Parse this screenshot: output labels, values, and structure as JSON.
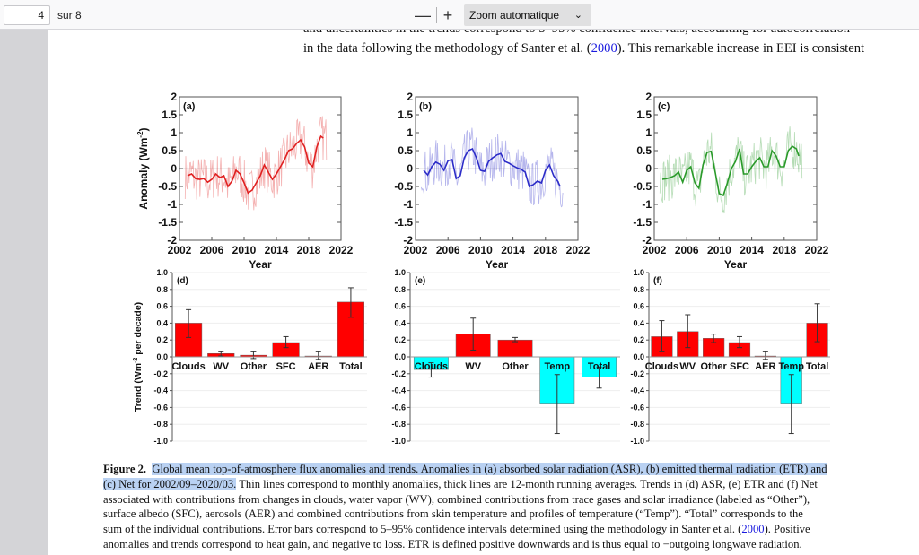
{
  "viewer": {
    "page_number": "4",
    "page_total": "sur 8",
    "zoom_out_label": "—",
    "zoom_in_label": "+",
    "zoom_value": "Zoom automatique",
    "chevron_icon": "chevron-down-icon"
  },
  "body_text": {
    "line1": "and uncertainties in the trends correspond to 5–95% confidence intervals, accounting for autocorrelation",
    "line2_pre": "in the data following the methodology of Santer et al. (",
    "line2_link": "2000",
    "line2_post": "). This remarkable increase in EEI is consistent"
  },
  "caption": {
    "label": "Figure 2.",
    "l1_hl": "Global mean top-of-atmosphere flux anomalies and trends. Anomalies in (a) absorbed solar radiation (ASR), (b) emitted thermal radiation (ETR) and",
    "l2_hl": "(c) Net for 2002/09–2020/03.",
    "l2_rest": " Thin lines correspond to monthly anomalies, thick lines are 12-month running averages. Trends in (d) ASR, (e) ETR and (f) Net",
    "l3": "associated with contributions from changes in clouds, water vapor (WV), combined contributions from trace gases and solar irradiance (labeled as “Other”),",
    "l4": "surface albedo (SFC), aerosols (AER) and combined contributions from skin temperature and profiles of temperature (“Temp”). “Total” corresponds to the",
    "l5_pre": "sum of the individual contributions. Error bars correspond to 5–95% confidence intervals determined using the methodology in Santer et al. (",
    "l5_link": "2000",
    "l5_post": "). Positive",
    "l6": "anomalies and trends correspond to heat gain, and negative to loss. ETR is defined positive downwards and is thus equal to −outgoing longwave radiation."
  },
  "chart_data": [
    {
      "type": "line",
      "panel": "(a)",
      "ylabel": "Anomaly (Wm-2)",
      "xlabel": "Year",
      "xlim": [
        2002,
        2022
      ],
      "ylim": [
        -2,
        2
      ],
      "xticks": [
        "2002",
        "2006",
        "2010",
        "2014",
        "2018",
        "2022"
      ],
      "yticks": [
        "2",
        "1.5",
        "1",
        "0.5",
        "0",
        "-0.5",
        "-1",
        "-1.5",
        "-2"
      ],
      "color": "#e02020",
      "series": [
        {
          "name": "12-month running average",
          "x": [
            2003.0,
            2003.5,
            2004.0,
            2004.5,
            2005.0,
            2005.5,
            2006.0,
            2006.5,
            2007.0,
            2007.5,
            2008.0,
            2008.5,
            2009.0,
            2009.5,
            2010.0,
            2010.5,
            2011.0,
            2011.5,
            2012.0,
            2012.5,
            2013.0,
            2013.5,
            2014.0,
            2014.5,
            2015.0,
            2015.5,
            2016.0,
            2016.5,
            2017.0,
            2017.5,
            2018.0,
            2018.5,
            2019.0,
            2019.5,
            2019.8
          ],
          "y": [
            -0.2,
            -0.15,
            -0.28,
            -0.3,
            -0.28,
            -0.38,
            -0.3,
            -0.15,
            -0.25,
            -0.2,
            -0.5,
            -0.35,
            -0.05,
            -0.15,
            -0.4,
            -0.68,
            -0.6,
            -0.4,
            -0.2,
            0.1,
            -0.1,
            -0.3,
            -0.15,
            0.05,
            0.25,
            0.5,
            0.55,
            0.7,
            0.8,
            0.6,
            0.15,
            0.05,
            0.6,
            0.9,
            0.85
          ]
        }
      ]
    },
    {
      "type": "line",
      "panel": "(b)",
      "xlabel": "Year",
      "xlim": [
        2002,
        2022
      ],
      "ylim": [
        -2,
        2
      ],
      "xticks": [
        "2002",
        "2006",
        "2010",
        "2014",
        "2018",
        "2022"
      ],
      "yticks": [
        "2",
        "1.5",
        "1",
        "0.5",
        "0",
        "-0.5",
        "-1",
        "-1.5",
        "-2"
      ],
      "color": "#2c2cc8",
      "series": [
        {
          "name": "12-month running average",
          "x": [
            2003.0,
            2003.5,
            2004.0,
            2004.5,
            2005.0,
            2005.5,
            2006.0,
            2006.5,
            2007.0,
            2007.5,
            2008.0,
            2008.5,
            2009.0,
            2009.5,
            2010.0,
            2010.5,
            2011.0,
            2011.5,
            2012.0,
            2012.5,
            2013.0,
            2013.5,
            2014.0,
            2014.5,
            2015.0,
            2015.5,
            2016.0,
            2016.5,
            2017.0,
            2017.5,
            2018.0,
            2018.5,
            2019.0,
            2019.5,
            2019.8
          ],
          "y": [
            -0.05,
            -0.18,
            0.05,
            0.18,
            0.12,
            -0.05,
            0.22,
            0.25,
            -0.28,
            -0.2,
            0.3,
            0.5,
            0.55,
            0.3,
            -0.05,
            -0.08,
            0.2,
            0.3,
            0.38,
            0.42,
            0.2,
            0.15,
            0.08,
            0.02,
            -0.02,
            -0.1,
            -0.5,
            -0.45,
            -0.35,
            -0.4,
            -0.05,
            0.1,
            -0.2,
            -0.35,
            -0.5
          ]
        }
      ]
    },
    {
      "type": "line",
      "panel": "(c)",
      "xlabel": "Year",
      "xlim": [
        2002,
        2022
      ],
      "ylim": [
        -2,
        2
      ],
      "xticks": [
        "2002",
        "2006",
        "2010",
        "2014",
        "2018",
        "2022"
      ],
      "yticks": [
        "2",
        "1.5",
        "1",
        "0.5",
        "0",
        "-0.5",
        "-1",
        "-1.5",
        "-2"
      ],
      "color": "#2a9a2a",
      "series": [
        {
          "name": "12-month running average",
          "x": [
            2003.0,
            2003.5,
            2004.0,
            2004.5,
            2005.0,
            2005.5,
            2006.0,
            2006.5,
            2007.0,
            2007.5,
            2008.0,
            2008.5,
            2009.0,
            2009.5,
            2010.0,
            2010.5,
            2011.0,
            2011.5,
            2012.0,
            2012.5,
            2013.0,
            2013.5,
            2014.0,
            2014.5,
            2015.0,
            2015.5,
            2016.0,
            2016.5,
            2017.0,
            2017.5,
            2018.0,
            2018.5,
            2019.0,
            2019.5,
            2019.8
          ],
          "y": [
            -0.3,
            -0.28,
            -0.25,
            -0.2,
            -0.1,
            -0.38,
            -0.05,
            0.05,
            -0.4,
            -0.55,
            0.1,
            0.45,
            0.48,
            -0.1,
            -0.7,
            -0.75,
            -0.4,
            0.0,
            0.2,
            0.55,
            -0.15,
            -0.15,
            0.05,
            0.2,
            0.3,
            0.05,
            0.05,
            0.5,
            0.35,
            0.05,
            0.05,
            0.5,
            0.62,
            0.55,
            0.35
          ]
        }
      ]
    },
    {
      "type": "bar",
      "panel": "(d)",
      "ylabel": "Trend (Wm-2 per decade)",
      "ylim": [
        -1.0,
        1.0
      ],
      "yticks": [
        "1.0",
        "0.8",
        "0.6",
        "0.4",
        "0.2",
        "0.0",
        "-0.2",
        "-0.4",
        "-0.6",
        "-0.8",
        "-1.0"
      ],
      "categories": [
        "Clouds",
        "WV",
        "Other",
        "SFC",
        "AER",
        "Total"
      ],
      "values": [
        0.4,
        0.04,
        0.02,
        0.17,
        0.01,
        0.65
      ],
      "err_low": [
        0.23,
        0.01,
        -0.02,
        0.11,
        -0.03,
        0.47
      ],
      "err_high": [
        0.56,
        0.06,
        0.06,
        0.24,
        0.06,
        0.82
      ],
      "grid": true
    },
    {
      "type": "bar",
      "panel": "(e)",
      "ylim": [
        -1.0,
        1.0
      ],
      "yticks": [
        "1.0",
        "0.8",
        "0.6",
        "0.4",
        "0.2",
        "0.0",
        "-0.2",
        "-0.4",
        "-0.6",
        "-0.8",
        "-1.0"
      ],
      "categories": [
        "Clouds",
        "WV",
        "Other",
        "Temp",
        "Total"
      ],
      "values": [
        -0.15,
        0.27,
        0.2,
        -0.56,
        -0.24
      ],
      "err_low": [
        -0.24,
        0.08,
        0.18,
        -0.91,
        -0.37
      ],
      "err_high": [
        -0.07,
        0.46,
        0.23,
        -0.21,
        -0.12
      ],
      "grid": true
    },
    {
      "type": "bar",
      "panel": "(f)",
      "ylim": [
        -1.0,
        1.0
      ],
      "yticks": [
        "1.0",
        "0.8",
        "0.6",
        "0.4",
        "0.2",
        "0.0",
        "-0.2",
        "-0.4",
        "-0.6",
        "-0.8",
        "-1.0"
      ],
      "categories": [
        "Clouds",
        "WV",
        "Other",
        "SFC",
        "AER",
        "Temp",
        "Total"
      ],
      "values": [
        0.24,
        0.3,
        0.22,
        0.17,
        0.01,
        -0.56,
        0.4
      ],
      "err_low": [
        0.06,
        0.11,
        0.17,
        0.11,
        -0.03,
        -0.91,
        0.18
      ],
      "err_high": [
        0.43,
        0.5,
        0.27,
        0.24,
        0.06,
        -0.21,
        0.63
      ],
      "grid": true
    }
  ],
  "colors": {
    "positive_bar": "#ff0000",
    "negative_bar": "#00ffff",
    "highlight": "#b9d1f2",
    "link": "#1a1adf"
  }
}
